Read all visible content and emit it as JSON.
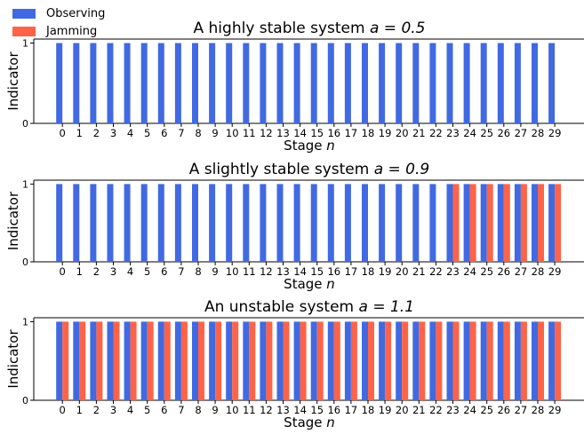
{
  "colors": {
    "observing": "#4169E1",
    "jamming": "#FF6347",
    "axis": "#000000"
  },
  "legend": [
    {
      "label": "Observing",
      "color": "#4169E1"
    },
    {
      "label": "Jamming",
      "color": "#FF6347"
    }
  ],
  "chart_data": [
    {
      "type": "bar",
      "title_text": "A highly stable system ",
      "title_math": "a = 0.5",
      "xlabel_text": "Stage ",
      "xlabel_math": "n",
      "ylabel": "Indicator",
      "categories": [
        "0",
        "1",
        "2",
        "3",
        "4",
        "5",
        "6",
        "7",
        "8",
        "9",
        "10",
        "11",
        "12",
        "13",
        "14",
        "15",
        "16",
        "17",
        "18",
        "19",
        "20",
        "21",
        "22",
        "23",
        "24",
        "25",
        "26",
        "27",
        "28",
        "29"
      ],
      "yticks": [
        "0",
        "1"
      ],
      "ylim": [
        0,
        1.05
      ],
      "series": [
        {
          "name": "Observing",
          "values": [
            1,
            1,
            1,
            1,
            1,
            1,
            1,
            1,
            1,
            1,
            1,
            1,
            1,
            1,
            1,
            1,
            1,
            1,
            1,
            1,
            1,
            1,
            1,
            1,
            1,
            1,
            1,
            1,
            1,
            1
          ]
        },
        {
          "name": "Jamming",
          "values": [
            0,
            0,
            0,
            0,
            0,
            0,
            0,
            0,
            0,
            0,
            0,
            0,
            0,
            0,
            0,
            0,
            0,
            0,
            0,
            0,
            0,
            0,
            0,
            0,
            0,
            0,
            0,
            0,
            0,
            0
          ]
        }
      ]
    },
    {
      "type": "bar",
      "title_text": "A slightly stable system ",
      "title_math": "a = 0.9",
      "xlabel_text": "Stage ",
      "xlabel_math": "n",
      "ylabel": "Indicator",
      "categories": [
        "0",
        "1",
        "2",
        "3",
        "4",
        "5",
        "6",
        "7",
        "8",
        "9",
        "10",
        "11",
        "12",
        "13",
        "14",
        "15",
        "16",
        "17",
        "18",
        "19",
        "20",
        "21",
        "22",
        "23",
        "24",
        "25",
        "26",
        "27",
        "28",
        "29"
      ],
      "yticks": [
        "0",
        "1"
      ],
      "ylim": [
        0,
        1.05
      ],
      "series": [
        {
          "name": "Observing",
          "values": [
            1,
            1,
            1,
            1,
            1,
            1,
            1,
            1,
            1,
            1,
            1,
            1,
            1,
            1,
            1,
            1,
            1,
            1,
            1,
            1,
            1,
            1,
            1,
            1,
            1,
            1,
            1,
            1,
            1,
            1
          ]
        },
        {
          "name": "Jamming",
          "values": [
            0,
            0,
            0,
            0,
            0,
            0,
            0,
            0,
            0,
            0,
            0,
            0,
            0,
            0,
            0,
            0,
            0,
            0,
            0,
            0,
            0,
            0,
            0,
            1,
            1,
            1,
            1,
            1,
            1,
            1
          ]
        }
      ]
    },
    {
      "type": "bar",
      "title_text": "An unstable system ",
      "title_math": "a = 1.1",
      "xlabel_text": "Stage ",
      "xlabel_math": "n",
      "ylabel": "Indicator",
      "categories": [
        "0",
        "1",
        "2",
        "3",
        "4",
        "5",
        "6",
        "7",
        "8",
        "9",
        "10",
        "11",
        "12",
        "13",
        "14",
        "15",
        "16",
        "17",
        "18",
        "19",
        "20",
        "21",
        "22",
        "23",
        "24",
        "25",
        "26",
        "27",
        "28",
        "29"
      ],
      "yticks": [
        "0",
        "1"
      ],
      "ylim": [
        0,
        1.05
      ],
      "series": [
        {
          "name": "Observing",
          "values": [
            1,
            1,
            1,
            1,
            1,
            1,
            1,
            1,
            1,
            1,
            1,
            1,
            1,
            1,
            1,
            1,
            1,
            1,
            1,
            1,
            1,
            1,
            1,
            1,
            1,
            1,
            1,
            1,
            1,
            1
          ]
        },
        {
          "name": "Jamming",
          "values": [
            1,
            1,
            1,
            1,
            1,
            1,
            1,
            1,
            1,
            1,
            1,
            1,
            1,
            1,
            1,
            1,
            1,
            1,
            1,
            1,
            1,
            1,
            1,
            1,
            1,
            1,
            1,
            1,
            1,
            1
          ]
        }
      ]
    }
  ]
}
